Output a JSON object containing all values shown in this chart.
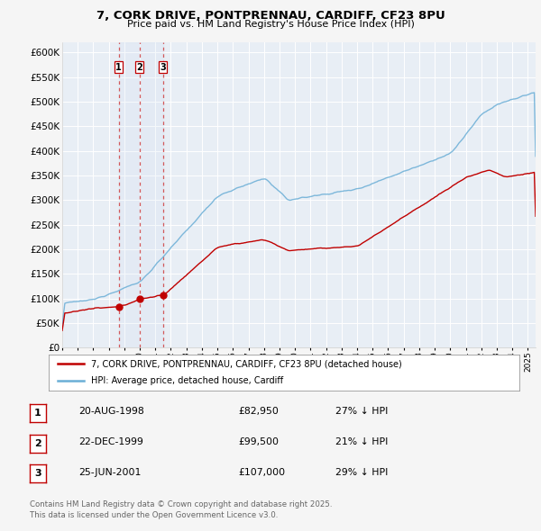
{
  "title_line1": "7, CORK DRIVE, PONTPRENNAU, CARDIFF, CF23 8PU",
  "title_line2": "Price paid vs. HM Land Registry's House Price Index (HPI)",
  "background_color": "#f5f5f5",
  "plot_bg_color": "#e8eef5",
  "grid_color": "#ffffff",
  "transactions": [
    {
      "num": 1,
      "date": "20-AUG-1998",
      "price": 82950,
      "year": 1998.634,
      "pct": "27%"
    },
    {
      "num": 2,
      "date": "22-DEC-1999",
      "price": 99500,
      "year": 1999.975,
      "pct": "21%"
    },
    {
      "num": 3,
      "date": "25-JUN-2001",
      "price": 107000,
      "year": 2001.479,
      "pct": "29%"
    }
  ],
  "legend_label1": "7, CORK DRIVE, PONTPRENNAU, CARDIFF, CF23 8PU (detached house)",
  "legend_label2": "HPI: Average price, detached house, Cardiff",
  "footer": "Contains HM Land Registry data © Crown copyright and database right 2025.\nThis data is licensed under the Open Government Licence v3.0.",
  "ylim": [
    0,
    620000
  ],
  "yticks": [
    0,
    50000,
    100000,
    150000,
    200000,
    250000,
    300000,
    350000,
    400000,
    450000,
    500000,
    550000,
    600000
  ],
  "hpi_color": "#6aaed6",
  "price_color": "#c00000",
  "vline_color": "#d04040",
  "marker_color": "#c00000",
  "xlim_start": 1995.0,
  "xlim_end": 2025.5
}
